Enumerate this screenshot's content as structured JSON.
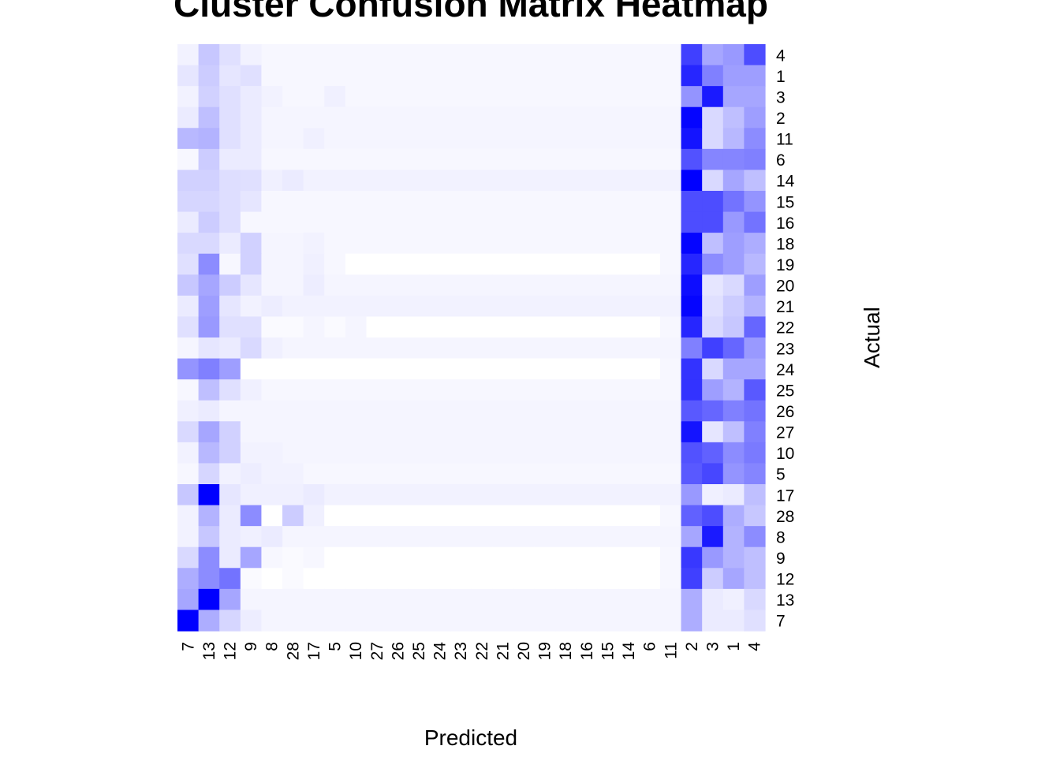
{
  "chart_data": {
    "type": "heatmap",
    "title": "Cluster Confusion Matrix Heatmap",
    "xlabel": "Predicted",
    "ylabel": "Actual",
    "x_categories": [
      "7",
      "13",
      "12",
      "9",
      "8",
      "28",
      "17",
      "5",
      "10",
      "27",
      "26",
      "25",
      "24",
      "23",
      "22",
      "21",
      "20",
      "19",
      "18",
      "16",
      "15",
      "14",
      "6",
      "11",
      "2",
      "3",
      "1",
      "4"
    ],
    "y_categories": [
      "4",
      "1",
      "3",
      "2",
      "11",
      "6",
      "14",
      "15",
      "16",
      "18",
      "19",
      "20",
      "21",
      "22",
      "23",
      "24",
      "25",
      "26",
      "27",
      "10",
      "5",
      "17",
      "28",
      "8",
      "9",
      "12",
      "13",
      "7"
    ],
    "color_scale": {
      "low": "#ffffff",
      "high": "#0000ff"
    },
    "values": [
      [
        0.05,
        0.22,
        0.12,
        0.05,
        0.03,
        0.03,
        0.03,
        0.03,
        0.03,
        0.03,
        0.03,
        0.03,
        0.03,
        0.03,
        0.03,
        0.03,
        0.03,
        0.03,
        0.03,
        0.03,
        0.03,
        0.03,
        0.03,
        0.03,
        0.75,
        0.35,
        0.4,
        0.7
      ],
      [
        0.1,
        0.2,
        0.1,
        0.12,
        0.03,
        0.03,
        0.03,
        0.03,
        0.03,
        0.03,
        0.03,
        0.03,
        0.03,
        0.03,
        0.03,
        0.03,
        0.03,
        0.03,
        0.03,
        0.03,
        0.03,
        0.03,
        0.03,
        0.03,
        0.85,
        0.5,
        0.38,
        0.38
      ],
      [
        0.05,
        0.18,
        0.12,
        0.08,
        0.05,
        0.03,
        0.03,
        0.06,
        0.03,
        0.03,
        0.03,
        0.03,
        0.03,
        0.03,
        0.03,
        0.03,
        0.03,
        0.03,
        0.03,
        0.03,
        0.03,
        0.03,
        0.03,
        0.03,
        0.42,
        0.9,
        0.35,
        0.35
      ],
      [
        0.08,
        0.25,
        0.12,
        0.08,
        0.04,
        0.04,
        0.04,
        0.04,
        0.04,
        0.04,
        0.04,
        0.04,
        0.04,
        0.04,
        0.04,
        0.04,
        0.04,
        0.04,
        0.04,
        0.04,
        0.04,
        0.04,
        0.04,
        0.04,
        0.98,
        0.15,
        0.25,
        0.38
      ],
      [
        0.28,
        0.3,
        0.12,
        0.08,
        0.04,
        0.04,
        0.06,
        0.04,
        0.04,
        0.04,
        0.04,
        0.04,
        0.04,
        0.04,
        0.04,
        0.04,
        0.04,
        0.04,
        0.04,
        0.04,
        0.04,
        0.04,
        0.04,
        0.04,
        0.92,
        0.15,
        0.28,
        0.45
      ],
      [
        0.03,
        0.2,
        0.08,
        0.08,
        0.03,
        0.03,
        0.03,
        0.03,
        0.03,
        0.03,
        0.03,
        0.03,
        0.03,
        0.03,
        0.03,
        0.03,
        0.03,
        0.03,
        0.03,
        0.03,
        0.03,
        0.03,
        0.03,
        0.03,
        0.68,
        0.48,
        0.48,
        0.5
      ],
      [
        0.18,
        0.18,
        0.13,
        0.12,
        0.06,
        0.08,
        0.05,
        0.05,
        0.05,
        0.05,
        0.05,
        0.05,
        0.05,
        0.05,
        0.05,
        0.05,
        0.05,
        0.05,
        0.05,
        0.05,
        0.05,
        0.05,
        0.05,
        0.05,
        1.0,
        0.15,
        0.35,
        0.25
      ],
      [
        0.16,
        0.16,
        0.13,
        0.1,
        0.03,
        0.03,
        0.03,
        0.03,
        0.03,
        0.03,
        0.03,
        0.03,
        0.03,
        0.03,
        0.03,
        0.03,
        0.03,
        0.03,
        0.03,
        0.03,
        0.03,
        0.03,
        0.03,
        0.03,
        0.7,
        0.7,
        0.55,
        0.42
      ],
      [
        0.08,
        0.2,
        0.13,
        0.03,
        0.03,
        0.03,
        0.03,
        0.03,
        0.03,
        0.03,
        0.03,
        0.03,
        0.03,
        0.03,
        0.03,
        0.03,
        0.03,
        0.03,
        0.03,
        0.03,
        0.03,
        0.03,
        0.03,
        0.03,
        0.7,
        0.7,
        0.4,
        0.55
      ],
      [
        0.15,
        0.15,
        0.08,
        0.18,
        0.04,
        0.04,
        0.05,
        0.03,
        0.03,
        0.03,
        0.03,
        0.03,
        0.03,
        0.03,
        0.03,
        0.03,
        0.03,
        0.03,
        0.03,
        0.03,
        0.03,
        0.03,
        0.03,
        0.03,
        0.98,
        0.25,
        0.38,
        0.32
      ],
      [
        0.12,
        0.45,
        0.03,
        0.18,
        0.04,
        0.04,
        0.06,
        0.03,
        0.0,
        0.0,
        0.0,
        0.0,
        0.0,
        0.0,
        0.0,
        0.0,
        0.0,
        0.0,
        0.0,
        0.0,
        0.0,
        0.0,
        0.0,
        0.03,
        0.85,
        0.45,
        0.38,
        0.28
      ],
      [
        0.22,
        0.35,
        0.2,
        0.1,
        0.04,
        0.04,
        0.07,
        0.04,
        0.04,
        0.04,
        0.04,
        0.04,
        0.04,
        0.04,
        0.04,
        0.04,
        0.04,
        0.04,
        0.04,
        0.04,
        0.04,
        0.04,
        0.04,
        0.04,
        0.95,
        0.1,
        0.15,
        0.38
      ],
      [
        0.08,
        0.38,
        0.1,
        0.05,
        0.07,
        0.05,
        0.05,
        0.05,
        0.05,
        0.05,
        0.05,
        0.05,
        0.05,
        0.05,
        0.05,
        0.05,
        0.05,
        0.05,
        0.05,
        0.05,
        0.05,
        0.05,
        0.05,
        0.05,
        0.98,
        0.12,
        0.2,
        0.3
      ],
      [
        0.12,
        0.4,
        0.12,
        0.12,
        0.02,
        0.02,
        0.04,
        0.02,
        0.04,
        0.0,
        0.0,
        0.0,
        0.0,
        0.0,
        0.0,
        0.0,
        0.0,
        0.0,
        0.0,
        0.0,
        0.0,
        0.0,
        0.0,
        0.03,
        0.85,
        0.15,
        0.22,
        0.6
      ],
      [
        0.04,
        0.1,
        0.08,
        0.15,
        0.06,
        0.04,
        0.04,
        0.04,
        0.04,
        0.04,
        0.04,
        0.04,
        0.04,
        0.04,
        0.04,
        0.04,
        0.04,
        0.04,
        0.04,
        0.04,
        0.04,
        0.04,
        0.04,
        0.04,
        0.5,
        0.75,
        0.6,
        0.4
      ],
      [
        0.42,
        0.5,
        0.38,
        0.0,
        0.0,
        0.0,
        0.0,
        0.0,
        0.0,
        0.0,
        0.0,
        0.0,
        0.0,
        0.0,
        0.0,
        0.0,
        0.0,
        0.0,
        0.0,
        0.0,
        0.0,
        0.0,
        0.0,
        0.03,
        0.8,
        0.15,
        0.35,
        0.35
      ],
      [
        0.03,
        0.25,
        0.12,
        0.06,
        0.03,
        0.03,
        0.03,
        0.03,
        0.03,
        0.03,
        0.03,
        0.03,
        0.03,
        0.03,
        0.03,
        0.03,
        0.03,
        0.03,
        0.03,
        0.03,
        0.03,
        0.03,
        0.03,
        0.03,
        0.8,
        0.38,
        0.3,
        0.65
      ],
      [
        0.06,
        0.08,
        0.04,
        0.04,
        0.04,
        0.04,
        0.04,
        0.04,
        0.04,
        0.04,
        0.04,
        0.04,
        0.04,
        0.04,
        0.04,
        0.04,
        0.04,
        0.04,
        0.04,
        0.04,
        0.04,
        0.04,
        0.04,
        0.04,
        0.65,
        0.6,
        0.5,
        0.55
      ],
      [
        0.15,
        0.35,
        0.18,
        0.04,
        0.04,
        0.04,
        0.04,
        0.04,
        0.04,
        0.04,
        0.04,
        0.04,
        0.04,
        0.04,
        0.04,
        0.04,
        0.04,
        0.04,
        0.04,
        0.04,
        0.04,
        0.04,
        0.04,
        0.04,
        0.92,
        0.1,
        0.25,
        0.5
      ],
      [
        0.05,
        0.28,
        0.18,
        0.05,
        0.05,
        0.04,
        0.04,
        0.04,
        0.04,
        0.04,
        0.04,
        0.04,
        0.04,
        0.04,
        0.04,
        0.04,
        0.04,
        0.04,
        0.04,
        0.04,
        0.04,
        0.04,
        0.04,
        0.04,
        0.68,
        0.62,
        0.45,
        0.52
      ],
      [
        0.03,
        0.16,
        0.05,
        0.07,
        0.05,
        0.05,
        0.03,
        0.03,
        0.03,
        0.03,
        0.03,
        0.03,
        0.03,
        0.03,
        0.03,
        0.03,
        0.03,
        0.03,
        0.03,
        0.03,
        0.03,
        0.03,
        0.03,
        0.03,
        0.65,
        0.72,
        0.42,
        0.48
      ],
      [
        0.22,
        1.0,
        0.1,
        0.06,
        0.06,
        0.06,
        0.08,
        0.05,
        0.05,
        0.05,
        0.05,
        0.05,
        0.05,
        0.05,
        0.05,
        0.05,
        0.05,
        0.05,
        0.05,
        0.05,
        0.05,
        0.05,
        0.05,
        0.05,
        0.4,
        0.06,
        0.08,
        0.25
      ],
      [
        0.05,
        0.3,
        0.08,
        0.45,
        0.0,
        0.2,
        0.06,
        0.0,
        0.0,
        0.0,
        0.0,
        0.0,
        0.0,
        0.0,
        0.0,
        0.0,
        0.0,
        0.0,
        0.0,
        0.0,
        0.0,
        0.0,
        0.0,
        0.03,
        0.62,
        0.7,
        0.32,
        0.22
      ],
      [
        0.05,
        0.22,
        0.08,
        0.06,
        0.08,
        0.04,
        0.04,
        0.04,
        0.04,
        0.04,
        0.04,
        0.04,
        0.04,
        0.04,
        0.04,
        0.04,
        0.04,
        0.04,
        0.04,
        0.04,
        0.04,
        0.04,
        0.04,
        0.04,
        0.35,
        0.9,
        0.3,
        0.45
      ],
      [
        0.15,
        0.45,
        0.08,
        0.35,
        0.03,
        0.02,
        0.03,
        0.0,
        0.0,
        0.0,
        0.0,
        0.0,
        0.0,
        0.0,
        0.0,
        0.0,
        0.0,
        0.0,
        0.0,
        0.0,
        0.0,
        0.0,
        0.0,
        0.03,
        0.78,
        0.4,
        0.3,
        0.25
      ],
      [
        0.32,
        0.45,
        0.55,
        0.02,
        0.0,
        0.02,
        0.0,
        0.0,
        0.0,
        0.0,
        0.0,
        0.0,
        0.0,
        0.0,
        0.0,
        0.0,
        0.0,
        0.0,
        0.0,
        0.0,
        0.0,
        0.0,
        0.0,
        0.03,
        0.75,
        0.2,
        0.35,
        0.25
      ],
      [
        0.35,
        1.0,
        0.35,
        0.04,
        0.04,
        0.04,
        0.04,
        0.04,
        0.04,
        0.04,
        0.04,
        0.04,
        0.04,
        0.04,
        0.04,
        0.04,
        0.04,
        0.04,
        0.04,
        0.04,
        0.04,
        0.04,
        0.04,
        0.04,
        0.32,
        0.08,
        0.06,
        0.15
      ],
      [
        1.0,
        0.32,
        0.16,
        0.07,
        0.04,
        0.04,
        0.04,
        0.04,
        0.04,
        0.04,
        0.04,
        0.04,
        0.04,
        0.04,
        0.04,
        0.04,
        0.04,
        0.04,
        0.04,
        0.04,
        0.04,
        0.04,
        0.04,
        0.04,
        0.32,
        0.08,
        0.08,
        0.12
      ]
    ]
  }
}
